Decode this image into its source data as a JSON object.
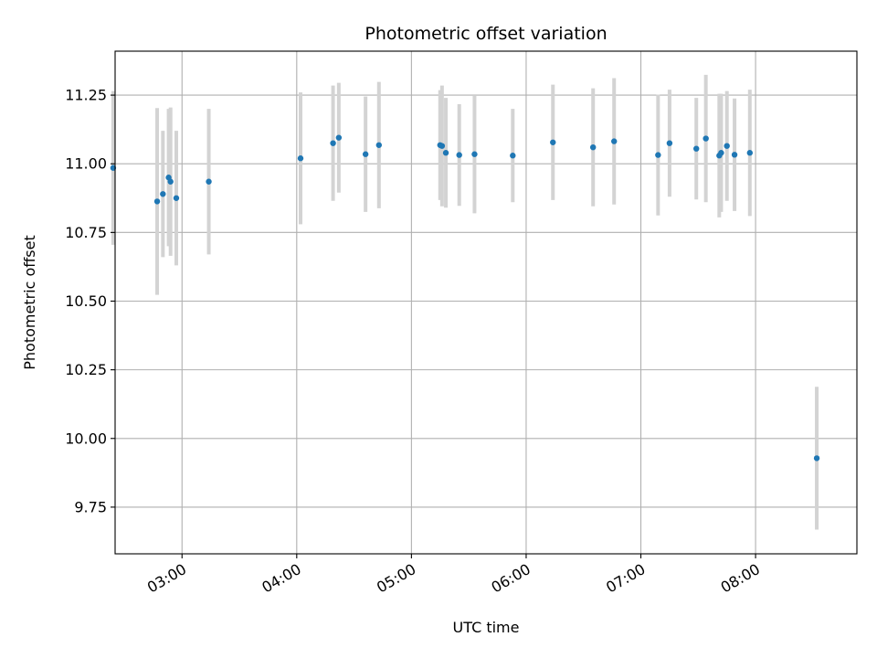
{
  "chart_data": {
    "type": "scatter",
    "title": "Photometric offset variation",
    "xlabel": "UTC time",
    "ylabel": "Photometric offset",
    "xlim": [
      "02:25",
      "08:53"
    ],
    "ylim": [
      9.58,
      11.41
    ],
    "grid": true,
    "x_ticks": [
      "03:00",
      "04:00",
      "05:00",
      "06:00",
      "07:00",
      "08:00"
    ],
    "y_ticks": [
      "9.75",
      "10.00",
      "10.25",
      "10.50",
      "10.75",
      "11.00",
      "11.25"
    ],
    "colors": {
      "point": "#1f77b4",
      "errorbar": "#d3d3d3",
      "grid": "#b0b0b0"
    },
    "points": [
      {
        "x": "02:24",
        "y": 10.985,
        "yerr": 0.28
      },
      {
        "x": "02:47",
        "y": 10.863,
        "yerr": 0.34
      },
      {
        "x": "02:50",
        "y": 10.89,
        "yerr": 0.23
      },
      {
        "x": "02:53",
        "y": 10.95,
        "yerr": 0.25
      },
      {
        "x": "02:54",
        "y": 10.935,
        "yerr": 0.27
      },
      {
        "x": "02:57",
        "y": 10.875,
        "yerr": 0.245
      },
      {
        "x": "03:14",
        "y": 10.935,
        "yerr": 0.265
      },
      {
        "x": "04:02",
        "y": 11.02,
        "yerr": 0.24
      },
      {
        "x": "04:19",
        "y": 11.075,
        "yerr": 0.21
      },
      {
        "x": "04:22",
        "y": 11.095,
        "yerr": 0.2
      },
      {
        "x": "04:36",
        "y": 11.035,
        "yerr": 0.21
      },
      {
        "x": "04:43",
        "y": 11.068,
        "yerr": 0.23
      },
      {
        "x": "05:15",
        "y": 11.068,
        "yerr": 0.2
      },
      {
        "x": "05:16",
        "y": 11.065,
        "yerr": 0.22
      },
      {
        "x": "05:18",
        "y": 11.04,
        "yerr": 0.2
      },
      {
        "x": "05:25",
        "y": 11.032,
        "yerr": 0.185
      },
      {
        "x": "05:33",
        "y": 11.035,
        "yerr": 0.215
      },
      {
        "x": "05:53",
        "y": 11.03,
        "yerr": 0.17
      },
      {
        "x": "06:14",
        "y": 11.078,
        "yerr": 0.21
      },
      {
        "x": "06:35",
        "y": 11.06,
        "yerr": 0.215
      },
      {
        "x": "06:46",
        "y": 11.082,
        "yerr": 0.23
      },
      {
        "x": "07:09",
        "y": 11.032,
        "yerr": 0.22
      },
      {
        "x": "07:15",
        "y": 11.075,
        "yerr": 0.195
      },
      {
        "x": "07:29",
        "y": 11.055,
        "yerr": 0.185
      },
      {
        "x": "07:34",
        "y": 11.092,
        "yerr": 0.232
      },
      {
        "x": "07:41",
        "y": 11.03,
        "yerr": 0.225
      },
      {
        "x": "07:42",
        "y": 11.04,
        "yerr": 0.215
      },
      {
        "x": "07:45",
        "y": 11.065,
        "yerr": 0.2
      },
      {
        "x": "07:49",
        "y": 11.033,
        "yerr": 0.205
      },
      {
        "x": "07:57",
        "y": 11.04,
        "yerr": 0.23
      },
      {
        "x": "08:32",
        "y": 9.928,
        "yerr": 0.26
      }
    ]
  }
}
